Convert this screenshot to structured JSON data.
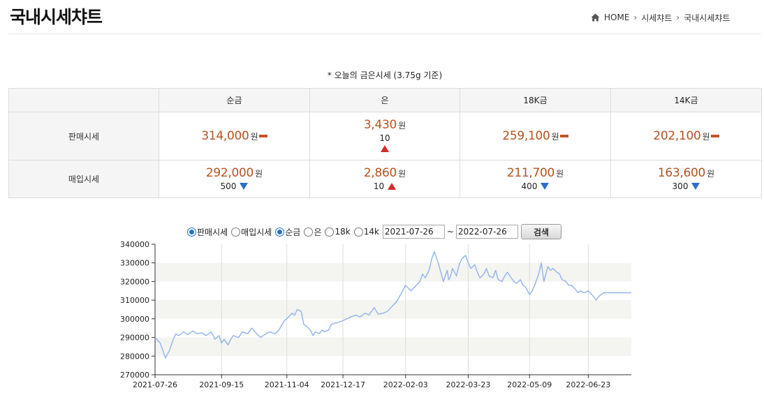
{
  "header": {
    "title": "국내시세챠트",
    "breadcrumb": {
      "home": "HOME",
      "level1": "시세챠트",
      "level2": "국내시세챠트"
    }
  },
  "price_table": {
    "caption": "* 오늘의 금은시세 (3.75g 기준)",
    "columns": [
      "순금",
      "은",
      "18K금",
      "14K금"
    ],
    "unit": "원",
    "rows": [
      {
        "label": "판매시세",
        "cells": [
          {
            "price": "314,000",
            "change": "",
            "direction": "flat"
          },
          {
            "price": "3,430",
            "change": "10",
            "direction": "up"
          },
          {
            "price": "259,100",
            "change": "",
            "direction": "flat"
          },
          {
            "price": "202,100",
            "change": "",
            "direction": "flat"
          }
        ]
      },
      {
        "label": "매입시세",
        "cells": [
          {
            "price": "292,000",
            "change": "500",
            "direction": "down"
          },
          {
            "price": "2,860",
            "change": "10",
            "direction": "up"
          },
          {
            "price": "211,700",
            "change": "400",
            "direction": "down"
          },
          {
            "price": "163,600",
            "change": "300",
            "direction": "down"
          }
        ]
      }
    ]
  },
  "chart_controls": {
    "price_type": {
      "options": [
        "판매시세",
        "매입시세"
      ],
      "selected": "판매시세"
    },
    "metal": {
      "options": [
        "순금",
        "은",
        "18k",
        "14k"
      ],
      "selected": "순금"
    },
    "start_date": "2021-07-26",
    "separator": "~",
    "end_date": "2022-07-26",
    "search_label": "검색"
  },
  "colors": {
    "price_text": "#b5521f",
    "flat_marker": "#c5532a",
    "up_marker": "#d62b2b",
    "down_marker": "#2f6ccf",
    "line": "#8fb4ea",
    "band": "#f4f4f1",
    "radio_selected": "#1f6fd6"
  },
  "chart_data": {
    "type": "line",
    "title": "",
    "xlabel": "",
    "ylabel": "",
    "ylim": [
      270000,
      340000
    ],
    "y_ticks": [
      "340000",
      "330000",
      "320000",
      "310000",
      "300000",
      "290000",
      "280000",
      "270000"
    ],
    "x_ticks": [
      "2021-07-26",
      "2021-09-15",
      "2021-11-04",
      "2021-12-17",
      "2022-02-03",
      "2022-03-23",
      "2022-05-09",
      "2022-06-23"
    ],
    "grid": "vertical lines at x ticks, alternating horizontal bands",
    "series": [
      {
        "x": [
          "2021-07-26",
          "2021-07-30",
          "2021-08-03",
          "2021-08-06",
          "2021-08-09",
          "2021-08-11",
          "2021-08-13",
          "2021-08-17",
          "2021-08-20",
          "2021-08-24",
          "2021-08-27",
          "2021-08-31",
          "2021-09-03",
          "2021-09-07",
          "2021-09-10",
          "2021-09-13",
          "2021-09-15",
          "2021-09-17",
          "2021-09-20",
          "2021-09-22",
          "2021-09-24",
          "2021-09-28",
          "2021-10-01",
          "2021-10-05",
          "2021-10-08",
          "2021-10-12",
          "2021-10-15",
          "2021-10-19",
          "2021-10-22",
          "2021-10-26",
          "2021-10-29",
          "2021-11-02",
          "2021-11-04",
          "2021-11-08",
          "2021-11-10",
          "2021-11-12",
          "2021-11-15",
          "2021-11-17",
          "2021-11-19",
          "2021-11-22",
          "2021-11-24",
          "2021-11-26",
          "2021-11-29",
          "2021-12-01",
          "2021-12-03",
          "2021-12-06",
          "2021-12-08",
          "2021-12-10",
          "2021-12-13",
          "2021-12-15",
          "2021-12-17",
          "2021-12-20",
          "2021-12-23",
          "2021-12-27",
          "2021-12-30",
          "2022-01-03",
          "2022-01-06",
          "2022-01-10",
          "2022-01-13",
          "2022-01-17",
          "2022-01-20",
          "2022-01-24",
          "2022-01-27",
          "2022-01-31",
          "2022-02-03",
          "2022-02-07",
          "2022-02-10",
          "2022-02-14",
          "2022-02-16",
          "2022-02-18",
          "2022-02-21",
          "2022-02-23",
          "2022-02-25",
          "2022-02-28",
          "2022-03-02",
          "2022-03-04",
          "2022-03-07",
          "2022-03-08",
          "2022-03-09",
          "2022-03-10",
          "2022-03-11",
          "2022-03-14",
          "2022-03-16",
          "2022-03-18",
          "2022-03-21",
          "2022-03-23",
          "2022-03-25",
          "2022-03-28",
          "2022-03-30",
          "2022-04-01",
          "2022-04-04",
          "2022-04-06",
          "2022-04-08",
          "2022-04-11",
          "2022-04-13",
          "2022-04-15",
          "2022-04-18",
          "2022-04-20",
          "2022-04-22",
          "2022-04-25",
          "2022-04-27",
          "2022-04-29",
          "2022-05-02",
          "2022-05-04",
          "2022-05-06",
          "2022-05-09",
          "2022-05-11",
          "2022-05-13",
          "2022-05-16",
          "2022-05-18",
          "2022-05-20",
          "2022-05-23",
          "2022-05-25",
          "2022-05-27",
          "2022-05-30",
          "2022-06-01",
          "2022-06-03",
          "2022-06-06",
          "2022-06-08",
          "2022-06-10",
          "2022-06-13",
          "2022-06-15",
          "2022-06-17",
          "2022-06-20",
          "2022-06-23",
          "2022-06-27",
          "2022-06-29",
          "2022-07-01",
          "2022-07-05",
          "2022-07-07",
          "2022-07-11",
          "2022-07-13",
          "2022-07-15",
          "2022-07-19",
          "2022-07-21",
          "2022-07-26"
        ],
        "y": [
          290000,
          287000,
          279000,
          283000,
          289000,
          292000,
          291000,
          293000,
          291500,
          293500,
          292000,
          292500,
          291000,
          293000,
          289000,
          291000,
          287000,
          289000,
          286000,
          289000,
          291000,
          290000,
          293000,
          292000,
          295000,
          292000,
          290000,
          292000,
          293000,
          292000,
          294000,
          299000,
          300000,
          303000,
          302000,
          305000,
          304000,
          297000,
          296000,
          294000,
          291000,
          293000,
          292000,
          294000,
          293000,
          294000,
          297000,
          297500,
          298000,
          298500,
          299000,
          300000,
          301000,
          302000,
          301000,
          303000,
          302000,
          306000,
          302500,
          303000,
          304000,
          307000,
          309000,
          314000,
          318000,
          315000,
          317000,
          320000,
          324000,
          322000,
          326000,
          332000,
          336000,
          330000,
          325000,
          320000,
          326000,
          321000,
          322000,
          324000,
          327000,
          323000,
          329000,
          332000,
          334000,
          330000,
          327000,
          329000,
          325000,
          322000,
          324000,
          327000,
          323000,
          322000,
          326000,
          321000,
          320000,
          323000,
          325000,
          322000,
          320000,
          319000,
          321000,
          318000,
          317000,
          313000,
          315000,
          318000,
          324000,
          330000,
          320000,
          328000,
          326000,
          327000,
          325000,
          324000,
          321000,
          320000,
          318000,
          318000,
          316000,
          314000,
          315000,
          314000,
          315000,
          312000,
          310000,
          312000,
          314000,
          314000,
          314000,
          314000,
          314000,
          314000,
          314000,
          314000
        ]
      }
    ]
  }
}
